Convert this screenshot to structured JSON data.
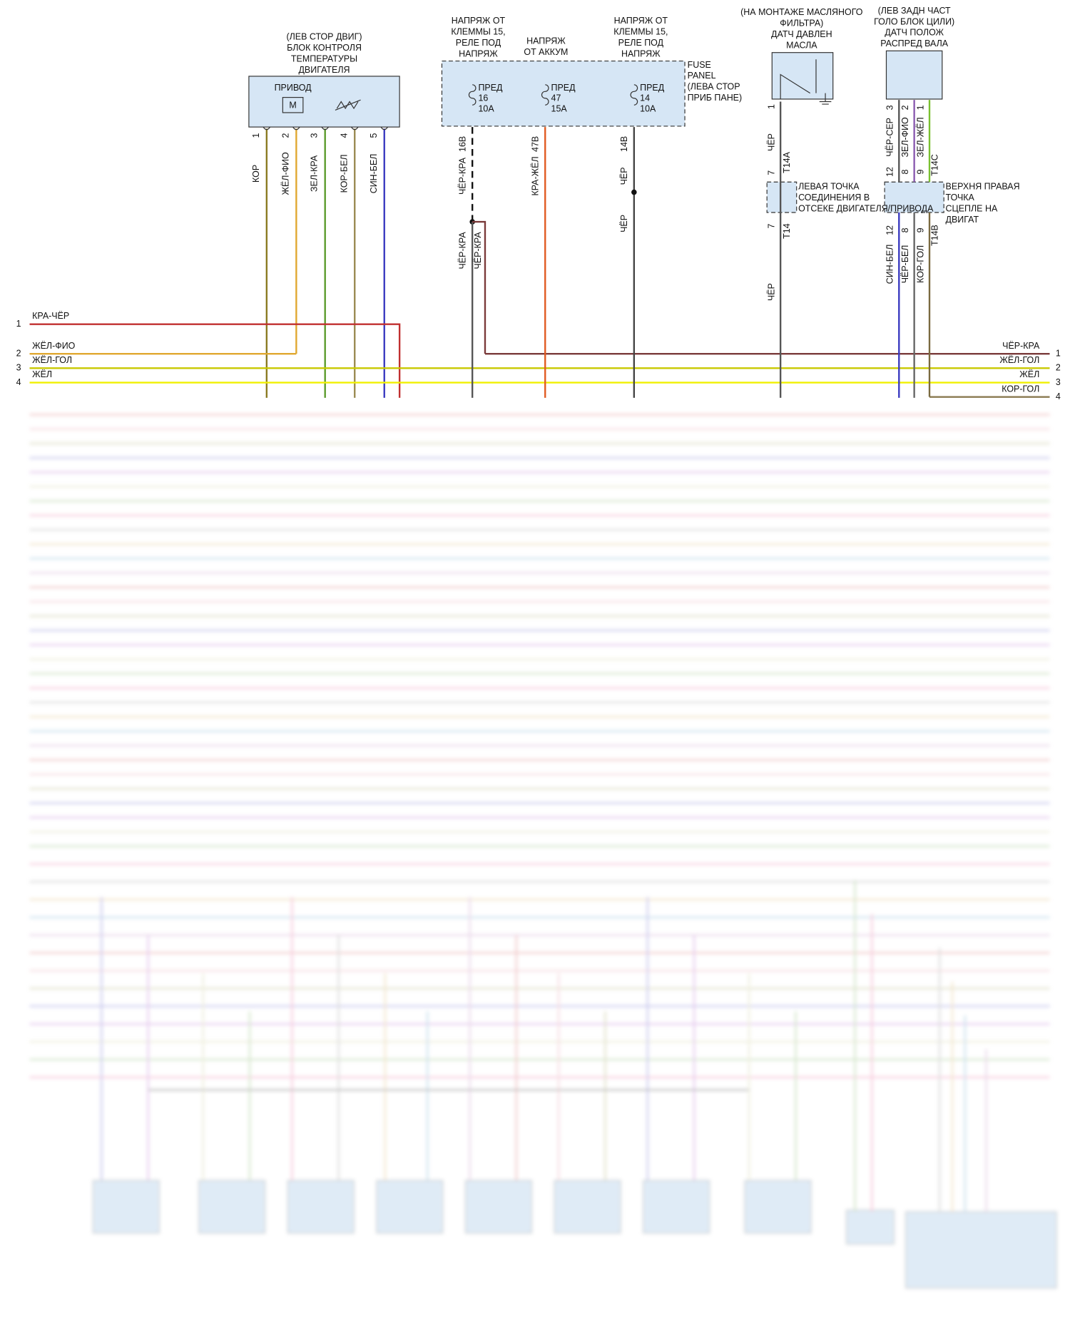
{
  "engine_temp_block": {
    "location": "(ЛЕВ СТОР ДВИГ)",
    "name": [
      "БЛОК КОНТРОЛЯ",
      "ТЕМПЕРАТУРЫ",
      "ДВИГАТЕЛЯ"
    ],
    "actuator": "ПРИВОД",
    "motor": "M",
    "pins": [
      "1",
      "2",
      "3",
      "4",
      "5"
    ],
    "wires": [
      "КОР",
      "ЖЁЛ-ФИО",
      "ЗЕЛ-КРА",
      "КОР-БЕЛ",
      "СИН-БЕЛ"
    ]
  },
  "fuse_panel": {
    "name": [
      "FUSE",
      "PANEL",
      "(ЛЕВА СТОР",
      "ПРИБ ПАНЕ)"
    ],
    "fuses": [
      {
        "supply": [
          "НАПРЯЖ ОТ",
          "КЛЕММЫ 15,",
          "РЕЛЕ ПОД",
          "НАПРЯЖ"
        ],
        "label": "ПРЕД",
        "number": "16",
        "rating": "10A",
        "pin": "16B",
        "wire": "ЧЁР-КРА"
      },
      {
        "supply": [
          "НАПРЯЖ",
          "ОТ АККУМ"
        ],
        "label": "ПРЕД",
        "number": "47",
        "rating": "15A",
        "pin": "47B",
        "wire": "КРА-ЖЁЛ"
      },
      {
        "supply": [
          "НАПРЯЖ ОТ",
          "КЛЕММЫ 15,",
          "РЕЛЕ ПОД",
          "НАПРЯЖ"
        ],
        "label": "ПРЕД",
        "number": "14",
        "rating": "10A",
        "pin": "14B",
        "wire": "ЧЁР"
      }
    ],
    "outputs": [
      "ЧЁР-КРА",
      "ЧЁР-КРА",
      "ЧЁР"
    ]
  },
  "oil_pressure_sensor": {
    "location": [
      "(НА МОНТАЖЕ МАСЛЯНОГО",
      "ФИЛЬТРА)"
    ],
    "name": [
      "ДАТЧ ДАВЛЕН",
      "МАСЛА"
    ],
    "pin": "1",
    "wire": "ЧЁР"
  },
  "left_splice": {
    "name": [
      "ЛЕВАЯ ТОЧКА",
      "СОЕДИНЕНИЯ В",
      "ОТСЕКЕ ДВИГАТЕЛЯ/ПРИВОДА"
    ],
    "connector_top": "T14A",
    "pin_top": "7",
    "connector_bottom": "T14",
    "pin_bottom": "7",
    "wire_out": "ЧЁР"
  },
  "cam_sensor": {
    "location": [
      "(ЛЕВ ЗАДН ЧАСТ",
      "ГОЛО БЛОК ЦИЛИ)"
    ],
    "name": [
      "ДАТЧ ПОЛОЖ",
      "РАСПРЕД ВАЛА"
    ],
    "pins": [
      "3",
      "2",
      "1"
    ],
    "wires": [
      "ЧЁР-СЕР",
      "ЗЕЛ-ФИО",
      "ЗЕЛ-ЖЁЛ"
    ]
  },
  "right_splice": {
    "name": [
      "ВЕРХНЯ ПРАВАЯ",
      "ТОЧКА",
      "СЦЕПЛЕ НА",
      "ДВИГАТ"
    ],
    "connector_top": "T14C",
    "pins_top": [
      "12",
      "8",
      "9"
    ],
    "connector_bottom": "T14B",
    "pins_bottom": [
      "12",
      "8",
      "9"
    ],
    "wires_out": [
      "СИН-БЕЛ",
      "ЧЁР-БЕЛ",
      "КОР-ГОЛ"
    ]
  },
  "left_bus": [
    {
      "pin": "1",
      "wire": "КРА-ЧЁР"
    },
    {
      "pin": "2",
      "wire": "ЖЁЛ-ФИО"
    },
    {
      "pin": "3",
      "wire": "ЖЁЛ-ГОЛ"
    },
    {
      "pin": "4",
      "wire": "ЖЁЛ"
    }
  ],
  "right_bus": [
    {
      "pin": "1",
      "wire": "ЧЁР-КРА"
    },
    {
      "pin": "2",
      "wire": "ЖЁЛ-ГОЛ"
    },
    {
      "pin": "3",
      "wire": "ЖЁЛ"
    },
    {
      "pin": "4",
      "wire": "КОР-ГОЛ"
    }
  ]
}
